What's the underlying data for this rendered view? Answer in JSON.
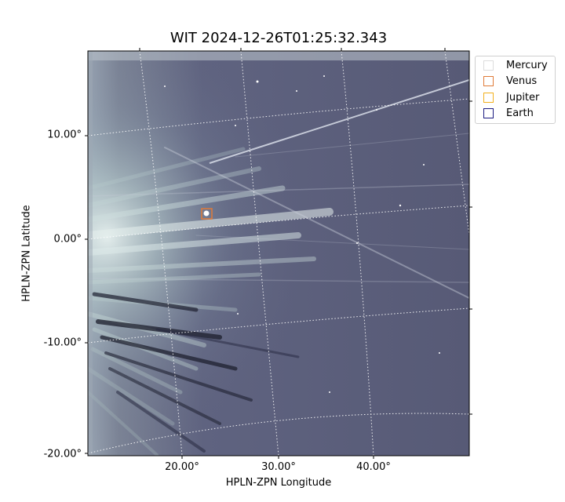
{
  "title": "WIT 2024-12-26T01:25:32.343",
  "axes": {
    "xlabel": "HPLN-ZPN Longitude",
    "ylabel": "HPLN-ZPN Latitude",
    "xticks": [
      "20.00°",
      "30.00°",
      "40.00°"
    ],
    "yticks": [
      "10.00°",
      "0.00°",
      "-10.00°",
      "-20.00°"
    ]
  },
  "legend": [
    {
      "label": "Mercury",
      "color": "#dcdcdc"
    },
    {
      "label": "Venus",
      "color": "#e07b39"
    },
    {
      "label": "Jupiter",
      "color": "#f2b01e"
    },
    {
      "label": "Earth",
      "color": "#1a1a80"
    }
  ],
  "image": {
    "background": "#5a5c78",
    "grid_color": "#ffffff",
    "marker_color": "#e07b39"
  }
}
